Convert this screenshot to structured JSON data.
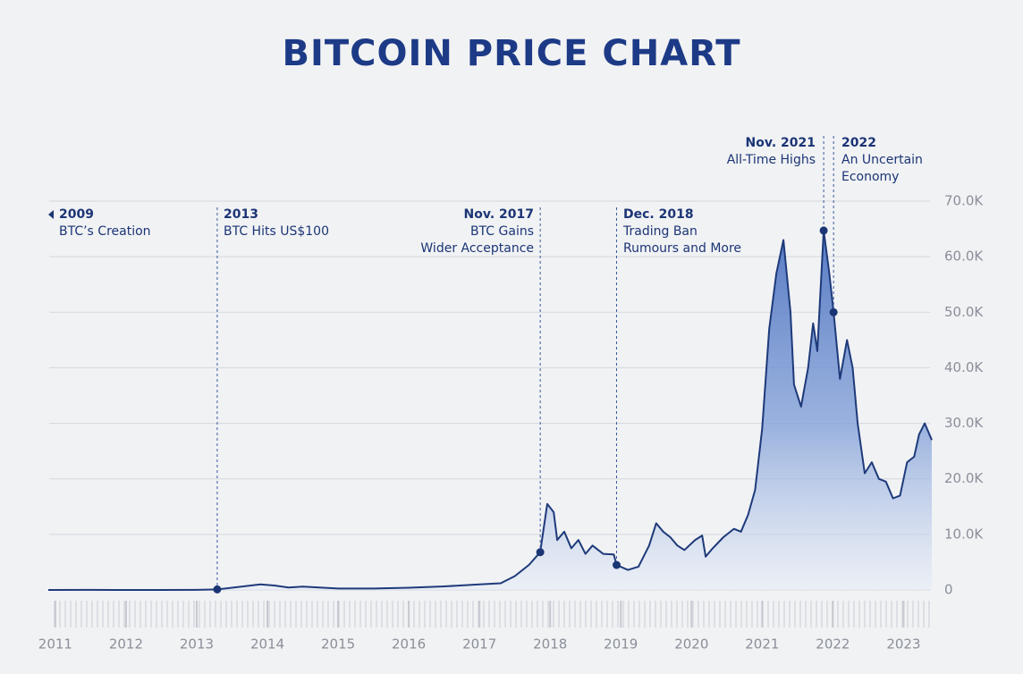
{
  "chart_data": {
    "type": "area",
    "title": "BITCOIN PRICE CHART",
    "color": "#1e3a7a",
    "x": [
      2010.9,
      2011.5,
      2012.0,
      2012.5,
      2013.0,
      2013.29,
      2013.9,
      2014.1,
      2014.3,
      2014.5,
      2015.0,
      2015.5,
      2016.0,
      2016.5,
      2017.0,
      2017.3,
      2017.5,
      2017.7,
      2017.86,
      2017.96,
      2018.05,
      2018.1,
      2018.2,
      2018.3,
      2018.4,
      2018.5,
      2018.6,
      2018.75,
      2018.9,
      2018.94,
      2019.1,
      2019.25,
      2019.4,
      2019.5,
      2019.6,
      2019.7,
      2019.8,
      2019.9,
      2020.05,
      2020.15,
      2020.2,
      2020.3,
      2020.45,
      2020.6,
      2020.7,
      2020.8,
      2020.9,
      2021.0,
      2021.1,
      2021.2,
      2021.3,
      2021.4,
      2021.45,
      2021.55,
      2021.65,
      2021.72,
      2021.78,
      2021.87,
      2021.95,
      2022.01,
      2022.1,
      2022.2,
      2022.28,
      2022.35,
      2022.45,
      2022.55,
      2022.65,
      2022.75,
      2022.85,
      2022.95,
      2023.05,
      2023.15,
      2023.22,
      2023.3,
      2023.4
    ],
    "values": [
      0,
      15,
      5,
      7,
      13,
      100,
      1000,
      800,
      450,
      600,
      250,
      250,
      400,
      650,
      1000,
      1200,
      2500,
      4500,
      6800,
      15500,
      14000,
      9000,
      10500,
      7500,
      9000,
      6500,
      8000,
      6500,
      6400,
      4500,
      3600,
      4200,
      8000,
      12000,
      10500,
      9500,
      8000,
      7200,
      9000,
      9800,
      6000,
      7500,
      9500,
      11000,
      10500,
      13500,
      18000,
      29000,
      47000,
      57000,
      63000,
      50000,
      37000,
      33000,
      40000,
      48000,
      43000,
      64700,
      57000,
      50000,
      38000,
      45000,
      40000,
      30000,
      21000,
      23000,
      20000,
      19500,
      16500,
      17000,
      23000,
      24000,
      28000,
      30000,
      27000
    ],
    "xlim": [
      2010.9,
      2023.45
    ],
    "xticks": [
      2011,
      2012,
      2013,
      2014,
      2015,
      2016,
      2017,
      2018,
      2019,
      2020,
      2021,
      2022,
      2023
    ],
    "ylim": [
      0,
      70000
    ],
    "yticks": [
      0,
      {
        "value": 10000,
        "label": "10.0K"
      },
      {
        "value": 20000,
        "label": "20.0K"
      },
      {
        "value": 30000,
        "label": "30.0K"
      },
      {
        "value": 40000,
        "label": "40.0K"
      },
      {
        "value": 50000,
        "label": "50.0K"
      },
      {
        "value": 60000,
        "label": "60.0K"
      },
      {
        "value": 70000,
        "label": "70.0K"
      }
    ],
    "grid": true,
    "annotations": [
      {
        "date": "2009",
        "lines": [
          "BTC’s Creation"
        ]
      },
      {
        "date": "2013",
        "lines": [
          "BTC Hits US$100"
        ],
        "x": 2013.29,
        "y": 100
      },
      {
        "date": "Nov. 2017",
        "lines": [
          "BTC Gains",
          "Wider Acceptance"
        ],
        "x": 2017.86,
        "y": 6800
      },
      {
        "date": "Dec. 2018",
        "lines": [
          "Trading Ban",
          "Rumours and More"
        ],
        "x": 2018.94,
        "y": 4500
      },
      {
        "date": "Nov. 2021",
        "lines": [
          "All-Time Highs"
        ],
        "x": 2021.87,
        "y": 64700
      },
      {
        "date": "2022",
        "lines": [
          "An Uncertain",
          "Economy"
        ],
        "x": 2022.01,
        "y": 50000
      }
    ]
  }
}
